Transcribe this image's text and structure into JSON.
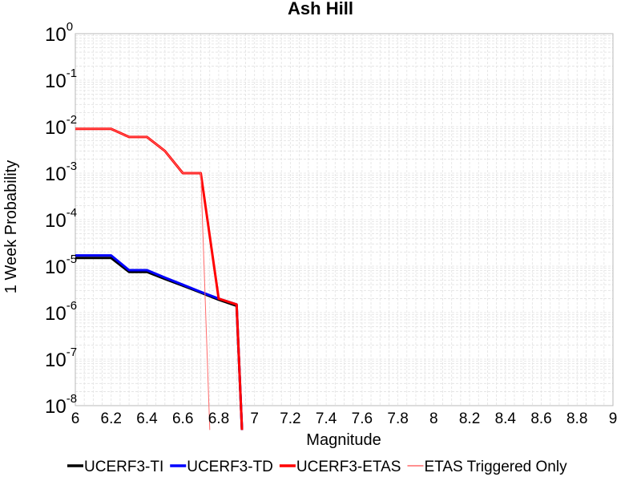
{
  "chart_data": {
    "type": "line",
    "title": "Ash Hill",
    "xlabel": "Magnitude",
    "ylabel": "1 Week Probability",
    "xlim": [
      6,
      9
    ],
    "ylim": [
      1e-08,
      1
    ],
    "yscale": "log",
    "grid": true,
    "legend_position": "bottom",
    "x_ticks": [
      "6",
      "6.2",
      "6.4",
      "6.6",
      "6.8",
      "7",
      "7.2",
      "7.4",
      "7.6",
      "7.8",
      "8",
      "8.2",
      "8.4",
      "8.6",
      "8.8",
      "9"
    ],
    "y_ticks": [
      {
        "base": "10",
        "exp": "0",
        "value": 1
      },
      {
        "base": "10",
        "exp": "-1",
        "value": 0.1
      },
      {
        "base": "10",
        "exp": "-2",
        "value": 0.01
      },
      {
        "base": "10",
        "exp": "-3",
        "value": 0.001
      },
      {
        "base": "10",
        "exp": "-4",
        "value": 0.0001
      },
      {
        "base": "10",
        "exp": "-5",
        "value": 1e-05
      },
      {
        "base": "10",
        "exp": "-6",
        "value": 1e-06
      },
      {
        "base": "10",
        "exp": "-7",
        "value": 1e-07
      },
      {
        "base": "10",
        "exp": "-8",
        "value": 1e-08
      }
    ],
    "series": [
      {
        "name": "UCERF3-TI",
        "color": "#000000",
        "width": 3,
        "points": [
          [
            6.0,
            1.5e-05
          ],
          [
            6.2,
            1.5e-05
          ],
          [
            6.3,
            7.5e-06
          ],
          [
            6.4,
            7.5e-06
          ],
          [
            6.5,
            5.3e-06
          ],
          [
            6.6,
            3.8e-06
          ],
          [
            6.7,
            2.7e-06
          ],
          [
            6.8,
            1.9e-06
          ],
          [
            6.9,
            1.4e-06
          ],
          [
            6.93,
            3e-09
          ]
        ]
      },
      {
        "name": "UCERF3-TD",
        "color": "#0000ff",
        "width": 3,
        "points": [
          [
            6.0,
            1.7e-05
          ],
          [
            6.2,
            1.7e-05
          ],
          [
            6.3,
            8.2e-06
          ],
          [
            6.4,
            8.2e-06
          ],
          [
            6.5,
            5.7e-06
          ],
          [
            6.6,
            4e-06
          ],
          [
            6.7,
            2.8e-06
          ],
          [
            6.8,
            2e-06
          ],
          [
            6.9,
            1.5e-06
          ],
          [
            6.93,
            3e-09
          ]
        ]
      },
      {
        "name": "UCERF3-ETAS",
        "color": "#ff0000",
        "width": 3,
        "points": [
          [
            6.0,
            0.009
          ],
          [
            6.2,
            0.009
          ],
          [
            6.3,
            0.006
          ],
          [
            6.4,
            0.006
          ],
          [
            6.5,
            0.003
          ],
          [
            6.6,
            0.001
          ],
          [
            6.7,
            0.001
          ],
          [
            6.8,
            2e-06
          ],
          [
            6.9,
            1.5e-06
          ],
          [
            6.93,
            3e-09
          ]
        ]
      },
      {
        "name": "ETAS Triggered Only",
        "color": "#ff6b6b",
        "width": 1,
        "points": [
          [
            6.0,
            0.009
          ],
          [
            6.2,
            0.009
          ],
          [
            6.3,
            0.006
          ],
          [
            6.4,
            0.006
          ],
          [
            6.5,
            0.003
          ],
          [
            6.6,
            0.001
          ],
          [
            6.7,
            0.001
          ],
          [
            6.75,
            3e-09
          ]
        ]
      }
    ]
  }
}
